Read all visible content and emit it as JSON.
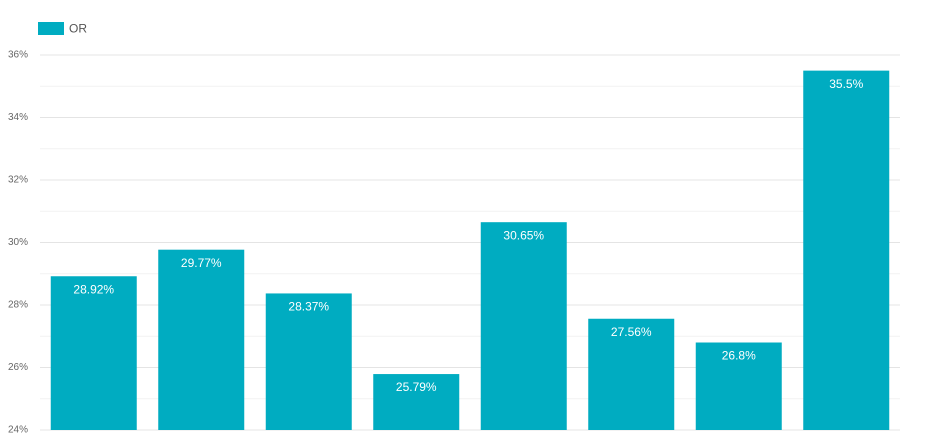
{
  "chart_data": {
    "type": "bar",
    "categories": [
      null,
      null,
      null,
      null,
      null,
      null,
      null,
      null
    ],
    "series": [
      {
        "name": "OR",
        "color": "#00acc1",
        "values": [
          28.92,
          29.77,
          28.37,
          25.79,
          30.65,
          27.56,
          26.8,
          35.5
        ],
        "value_labels": [
          "28.92%",
          "29.77%",
          "28.37%",
          "25.79%",
          "30.65%",
          "27.56%",
          "26.8%",
          "35.5%"
        ]
      }
    ],
    "ylim": [
      24,
      36
    ],
    "yticks": [
      {
        "value": 24,
        "label": "24%"
      },
      {
        "value": 26,
        "label": "26%"
      },
      {
        "value": 28,
        "label": "28%"
      },
      {
        "value": 30,
        "label": "30%"
      },
      {
        "value": 32,
        "label": "32%"
      },
      {
        "value": 34,
        "label": "34%"
      },
      {
        "value": 36,
        "label": "36%"
      }
    ],
    "minor_yticks": [
      25,
      27,
      29,
      31,
      33,
      35
    ],
    "grid": true,
    "legend": "top-left"
  }
}
